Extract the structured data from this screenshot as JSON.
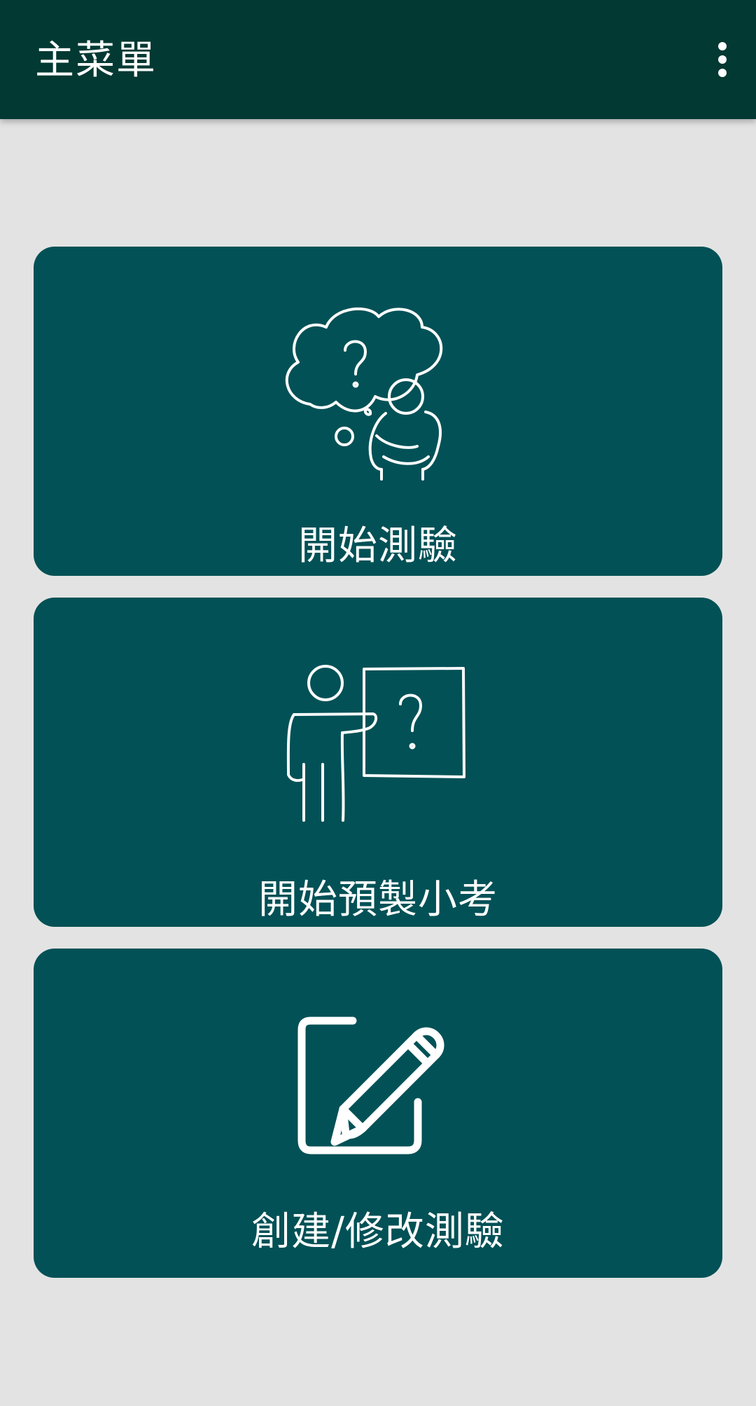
{
  "appbar": {
    "title": "主菜單",
    "overflow_icon": "more-vert-icon"
  },
  "menu": {
    "items": [
      {
        "label": "開始測驗",
        "icon": "thinking-person-icon"
      },
      {
        "label": "開始預製小考",
        "icon": "teacher-board-icon"
      },
      {
        "label": "創建/修改測驗",
        "icon": "edit-icon"
      }
    ]
  },
  "colors": {
    "appbar": "#023932",
    "card": "#025156",
    "background": "#e3e3e3",
    "foreground": "#ffffff"
  }
}
